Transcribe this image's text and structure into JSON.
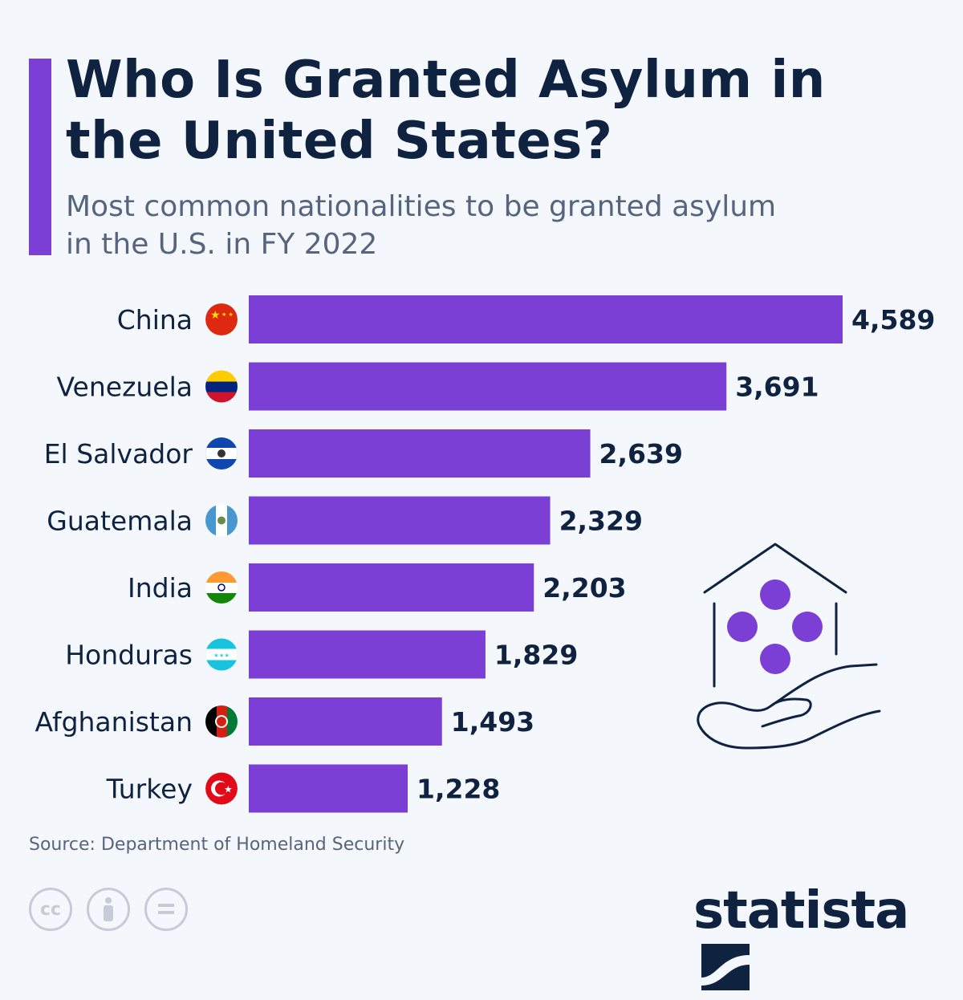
{
  "header": {
    "title": "Who Is Granted Asylum in the United States?",
    "subtitle": "Most common nationalities to be granted asylum in the U.S. in FY 2022"
  },
  "chart_data": {
    "type": "bar",
    "orientation": "horizontal",
    "title": "Who Is Granted Asylum in the United States?",
    "subtitle": "Most common nationalities to be granted asylum in the U.S. in FY 2022",
    "categories": [
      "China",
      "Venezuela",
      "El Salvador",
      "Guatemala",
      "India",
      "Honduras",
      "Afghanistan",
      "Turkey"
    ],
    "values": [
      4589,
      3691,
      2639,
      2329,
      2203,
      1829,
      1493,
      1228
    ],
    "value_labels": [
      "4,589",
      "3,691",
      "2,639",
      "2,329",
      "2,203",
      "1,829",
      "1,493",
      "1,228"
    ],
    "flags": [
      "china-flag",
      "venezuela-flag",
      "el-salvador-flag",
      "guatemala-flag",
      "india-flag",
      "honduras-flag",
      "afghanistan-flag",
      "turkey-flag"
    ],
    "bar_color": "#7b3fd6",
    "grid": false,
    "xlim": [
      0,
      4589
    ]
  },
  "footer": {
    "source": "Source: Department of Homeland Security",
    "license_icons": [
      "creative-commons-icon",
      "attribution-icon",
      "no-derivatives-icon"
    ],
    "cc_label": "cc",
    "logo": "statista"
  },
  "colors": {
    "accent": "#7b3fd6",
    "title": "#0f2340",
    "background": "#f4f7fb"
  }
}
